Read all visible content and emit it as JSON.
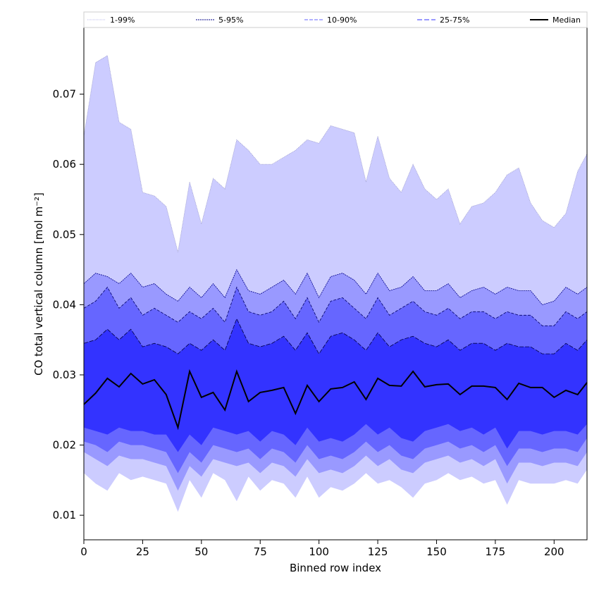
{
  "chart_data": {
    "type": "area",
    "xlabel": "Binned row index",
    "ylabel": "CO total vertical column [mol m⁻²]",
    "xlim": [
      0,
      214
    ],
    "ylim": [
      0.0065,
      0.0795
    ],
    "xticks": [
      0,
      25,
      50,
      75,
      100,
      125,
      150,
      175,
      200
    ],
    "xtick_labels": [
      "0",
      "25",
      "50",
      "75",
      "100",
      "125",
      "150",
      "175",
      "200"
    ],
    "yticks": [
      0.01,
      0.02,
      0.03,
      0.04,
      0.05,
      0.06,
      0.07
    ],
    "ytick_labels": [
      "0.01",
      "0.02",
      "0.03",
      "0.04",
      "0.05",
      "0.06",
      "0.07"
    ],
    "grid": false,
    "legend_position": "top",
    "x": [
      0,
      5,
      10,
      15,
      20,
      25,
      30,
      35,
      40,
      45,
      50,
      55,
      60,
      65,
      70,
      75,
      80,
      85,
      90,
      95,
      100,
      105,
      110,
      115,
      120,
      125,
      130,
      135,
      140,
      145,
      150,
      155,
      160,
      165,
      170,
      175,
      180,
      185,
      190,
      195,
      200,
      205,
      210,
      214
    ],
    "bands": [
      {
        "name": "1-99%",
        "color": "#ccccff",
        "line_color": "#9999cc",
        "upper": [
          0.064,
          0.0745,
          0.0755,
          0.066,
          0.065,
          0.056,
          0.0555,
          0.054,
          0.0475,
          0.0575,
          0.0515,
          0.058,
          0.0565,
          0.0635,
          0.062,
          0.06,
          0.06,
          0.061,
          0.062,
          0.0635,
          0.063,
          0.0655,
          0.065,
          0.0645,
          0.0575,
          0.064,
          0.058,
          0.056,
          0.06,
          0.0565,
          0.055,
          0.0565,
          0.0515,
          0.054,
          0.0545,
          0.056,
          0.0585,
          0.0595,
          0.0545,
          0.052,
          0.051,
          0.053,
          0.059,
          0.0615
        ],
        "lower": [
          0.016,
          0.0145,
          0.0135,
          0.016,
          0.015,
          0.0155,
          0.015,
          0.0145,
          0.0105,
          0.015,
          0.0125,
          0.016,
          0.015,
          0.012,
          0.0155,
          0.0135,
          0.015,
          0.0145,
          0.0125,
          0.0155,
          0.0125,
          0.014,
          0.0135,
          0.0145,
          0.016,
          0.0145,
          0.015,
          0.014,
          0.0125,
          0.0145,
          0.015,
          0.016,
          0.015,
          0.0155,
          0.0145,
          0.015,
          0.0115,
          0.015,
          0.0145,
          0.0145,
          0.0145,
          0.015,
          0.0145,
          0.0165
        ]
      },
      {
        "name": "5-95%",
        "color": "#9999ff",
        "line_color": "#000088",
        "upper": [
          0.043,
          0.0445,
          0.044,
          0.043,
          0.0445,
          0.0425,
          0.043,
          0.0415,
          0.0405,
          0.0425,
          0.041,
          0.043,
          0.041,
          0.045,
          0.042,
          0.0415,
          0.0425,
          0.0435,
          0.0415,
          0.0445,
          0.041,
          0.044,
          0.0445,
          0.0435,
          0.0415,
          0.0445,
          0.042,
          0.0425,
          0.044,
          0.042,
          0.042,
          0.043,
          0.041,
          0.042,
          0.0425,
          0.0415,
          0.0425,
          0.042,
          0.042,
          0.04,
          0.0405,
          0.0425,
          0.0415,
          0.0425
        ],
        "lower": [
          0.019,
          0.018,
          0.017,
          0.0185,
          0.018,
          0.018,
          0.0175,
          0.017,
          0.0135,
          0.017,
          0.0155,
          0.018,
          0.0175,
          0.017,
          0.0175,
          0.016,
          0.0175,
          0.017,
          0.0155,
          0.018,
          0.016,
          0.0165,
          0.016,
          0.017,
          0.0185,
          0.017,
          0.018,
          0.0165,
          0.016,
          0.0175,
          0.018,
          0.0185,
          0.0175,
          0.018,
          0.017,
          0.018,
          0.0145,
          0.0175,
          0.0175,
          0.017,
          0.0175,
          0.0175,
          0.017,
          0.019
        ]
      },
      {
        "name": "10-90%",
        "color": "#6666ff",
        "line_color": "#000066",
        "upper": [
          0.0395,
          0.0405,
          0.0425,
          0.0395,
          0.041,
          0.0385,
          0.0395,
          0.0385,
          0.0375,
          0.039,
          0.038,
          0.0395,
          0.0375,
          0.0425,
          0.039,
          0.0385,
          0.039,
          0.0405,
          0.038,
          0.041,
          0.0375,
          0.0405,
          0.041,
          0.0395,
          0.038,
          0.041,
          0.0385,
          0.0395,
          0.0405,
          0.039,
          0.0385,
          0.0395,
          0.038,
          0.039,
          0.039,
          0.038,
          0.039,
          0.0385,
          0.0385,
          0.037,
          0.037,
          0.039,
          0.038,
          0.039
        ],
        "lower": [
          0.0205,
          0.02,
          0.019,
          0.0205,
          0.02,
          0.02,
          0.0195,
          0.019,
          0.016,
          0.019,
          0.0175,
          0.02,
          0.0195,
          0.019,
          0.0195,
          0.018,
          0.0195,
          0.019,
          0.0175,
          0.02,
          0.018,
          0.0185,
          0.018,
          0.019,
          0.0205,
          0.019,
          0.02,
          0.0185,
          0.018,
          0.0195,
          0.02,
          0.0205,
          0.0195,
          0.02,
          0.019,
          0.02,
          0.017,
          0.0195,
          0.0195,
          0.019,
          0.0195,
          0.0195,
          0.019,
          0.021
        ]
      },
      {
        "name": "25-75%",
        "color": "#3333ff",
        "line_color": "#000044",
        "upper": [
          0.0345,
          0.035,
          0.0365,
          0.035,
          0.0365,
          0.034,
          0.0345,
          0.034,
          0.033,
          0.0345,
          0.0335,
          0.035,
          0.0335,
          0.038,
          0.0345,
          0.034,
          0.0345,
          0.0355,
          0.0335,
          0.036,
          0.033,
          0.0355,
          0.036,
          0.035,
          0.0335,
          0.036,
          0.034,
          0.035,
          0.0355,
          0.0345,
          0.034,
          0.035,
          0.0335,
          0.0345,
          0.0345,
          0.0335,
          0.0345,
          0.034,
          0.034,
          0.033,
          0.033,
          0.0345,
          0.0335,
          0.035
        ],
        "lower": [
          0.0225,
          0.022,
          0.0215,
          0.0225,
          0.022,
          0.022,
          0.0215,
          0.0215,
          0.019,
          0.0215,
          0.02,
          0.0225,
          0.022,
          0.0215,
          0.022,
          0.0205,
          0.022,
          0.0215,
          0.02,
          0.0225,
          0.0205,
          0.021,
          0.0205,
          0.0215,
          0.023,
          0.0215,
          0.0225,
          0.021,
          0.0205,
          0.022,
          0.0225,
          0.023,
          0.022,
          0.0225,
          0.0215,
          0.0225,
          0.0195,
          0.022,
          0.022,
          0.0215,
          0.022,
          0.022,
          0.0215,
          0.023
        ]
      }
    ],
    "median": {
      "name": "Median",
      "color": "#000000",
      "values": [
        0.0258,
        0.0274,
        0.0295,
        0.0283,
        0.0302,
        0.0287,
        0.0293,
        0.0272,
        0.0225,
        0.0305,
        0.0268,
        0.0275,
        0.025,
        0.0305,
        0.0262,
        0.0275,
        0.0278,
        0.0282,
        0.0245,
        0.0285,
        0.0262,
        0.028,
        0.0282,
        0.029,
        0.0265,
        0.0295,
        0.0285,
        0.0284,
        0.0305,
        0.0283,
        0.0286,
        0.0287,
        0.0272,
        0.0284,
        0.0284,
        0.0282,
        0.0265,
        0.0288,
        0.0282,
        0.0282,
        0.0268,
        0.0278,
        0.0272,
        0.0289
      ]
    },
    "legend": {
      "entries": [
        {
          "label": "1-99%",
          "color": "#bbbbee",
          "dash": "1,1"
        },
        {
          "label": "5-95%",
          "color": "#000088",
          "dash": "2,1"
        },
        {
          "label": "10-90%",
          "color": "#6666ff",
          "dash": "5,2"
        },
        {
          "label": "25-75%",
          "color": "#3333ff",
          "dash": "7,3"
        },
        {
          "label": "Median",
          "color": "#000000",
          "dash": ""
        }
      ]
    }
  }
}
